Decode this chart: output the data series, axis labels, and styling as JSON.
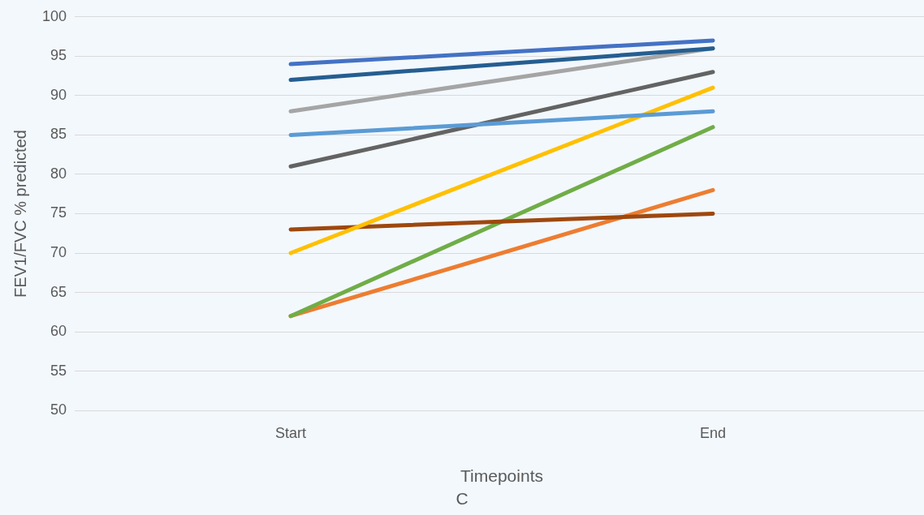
{
  "chart_data": {
    "type": "line",
    "xlabel": "Timepoints",
    "ylabel": "FEV1/FVC % predicted",
    "annotations": [
      "C"
    ],
    "categories": [
      "Start",
      "End"
    ],
    "series": [
      {
        "color": "#4472c4",
        "values": [
          94,
          97
        ]
      },
      {
        "color": "#255e91",
        "values": [
          92,
          96
        ]
      },
      {
        "color": "#a5a5a5",
        "values": [
          88,
          96
        ]
      },
      {
        "color": "#5b9bd5",
        "values": [
          85,
          88
        ]
      },
      {
        "color": "#636363",
        "values": [
          81,
          93
        ]
      },
      {
        "color": "#ffc000",
        "values": [
          70,
          91
        ]
      },
      {
        "color": "#9e480e",
        "values": [
          73,
          75
        ]
      },
      {
        "color": "#70ad47",
        "values": [
          62,
          86
        ]
      },
      {
        "color": "#ed7d31",
        "values": [
          62,
          78
        ]
      }
    ],
    "ylim": [
      50,
      100
    ],
    "yticks": [
      50,
      55,
      60,
      65,
      70,
      75,
      80,
      85,
      90,
      95,
      100
    ],
    "grid": "y",
    "legend": false,
    "marker": "none",
    "line_style": "solid"
  }
}
